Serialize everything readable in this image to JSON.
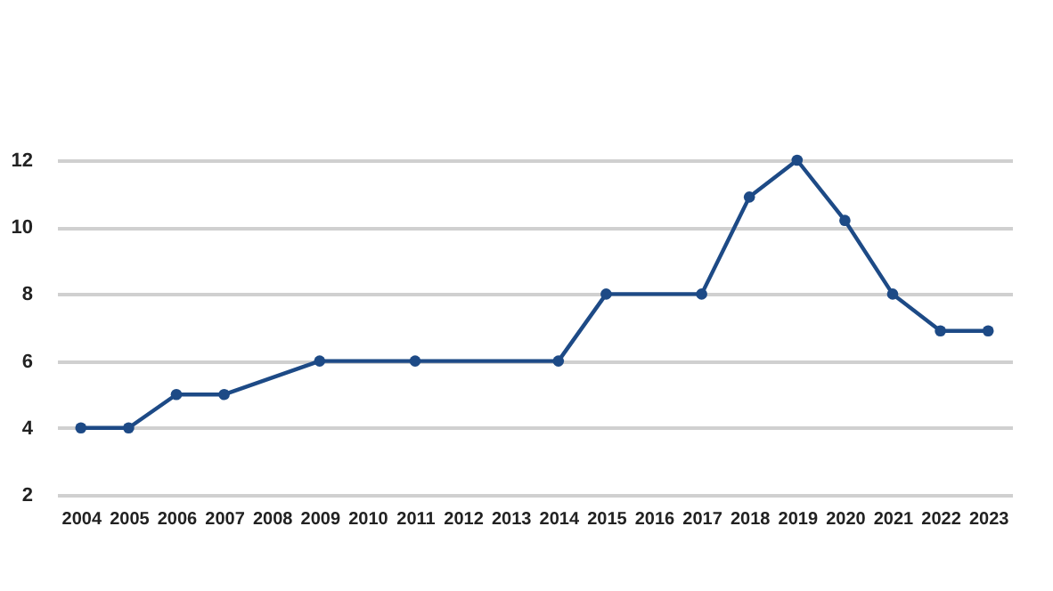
{
  "chart_data": {
    "type": "line",
    "x": [
      2004,
      2005,
      2006,
      2007,
      2009,
      2011,
      2014,
      2015,
      2017,
      2018,
      2019,
      2020,
      2021,
      2022,
      2023
    ],
    "series": [
      {
        "color": "#1d4a86",
        "values": [
          4,
          4,
          5,
          5,
          6,
          6,
          6,
          8,
          8,
          10.9,
          12,
          10.2,
          8,
          6.9,
          6.9
        ]
      }
    ],
    "xlim": [
      2003.5,
      2023.5
    ],
    "xticks": [
      2004,
      2005,
      2006,
      2007,
      2008,
      2009,
      2010,
      2011,
      2012,
      2013,
      2014,
      2015,
      2016,
      2017,
      2018,
      2019,
      2020,
      2021,
      2022,
      2023
    ],
    "ylim": [
      2,
      12
    ],
    "yticks": [
      2,
      4,
      6,
      8,
      10,
      12
    ],
    "grid": "y",
    "marker": "circle",
    "line_style": "solid"
  }
}
